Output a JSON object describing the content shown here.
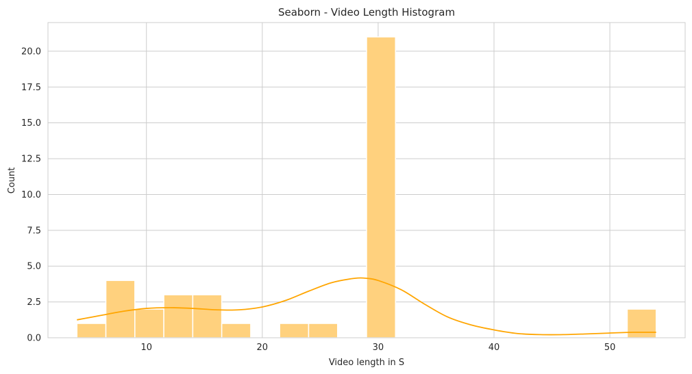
{
  "chart_data": {
    "type": "bar",
    "title": "Seaborn - Video Length Histogram",
    "xlabel": "Video length in S",
    "ylabel": "Count",
    "xlim": [
      1.5,
      56.5
    ],
    "ylim": [
      0,
      22
    ],
    "xticks": [
      10,
      20,
      30,
      40,
      50
    ],
    "yticks": [
      "0.0",
      "2.5",
      "5.0",
      "7.5",
      "10.0",
      "12.5",
      "15.0",
      "17.5",
      "20.0"
    ],
    "grid": true,
    "bins": [
      {
        "x0": 4.0,
        "x1": 6.5,
        "count": 1
      },
      {
        "x0": 6.5,
        "x1": 9.0,
        "count": 4
      },
      {
        "x0": 9.0,
        "x1": 11.5,
        "count": 2
      },
      {
        "x0": 11.5,
        "x1": 14.0,
        "count": 3
      },
      {
        "x0": 14.0,
        "x1": 16.5,
        "count": 3
      },
      {
        "x0": 16.5,
        "x1": 19.0,
        "count": 1
      },
      {
        "x0": 21.5,
        "x1": 24.0,
        "count": 1
      },
      {
        "x0": 24.0,
        "x1": 26.5,
        "count": 1
      },
      {
        "x0": 29.0,
        "x1": 31.5,
        "count": 21
      },
      {
        "x0": 51.5,
        "x1": 54.0,
        "count": 2
      }
    ],
    "kde": {
      "x": [
        4,
        6,
        8,
        10,
        12,
        14,
        16,
        18,
        20,
        22,
        24,
        26,
        28,
        29,
        30,
        32,
        34,
        36,
        38,
        40,
        42,
        44,
        46,
        48,
        50,
        52,
        54
      ],
      "y": [
        1.25,
        1.55,
        1.85,
        2.05,
        2.1,
        2.05,
        1.95,
        1.95,
        2.15,
        2.6,
        3.25,
        3.85,
        4.15,
        4.15,
        4.0,
        3.35,
        2.35,
        1.45,
        0.9,
        0.55,
        0.3,
        0.22,
        0.22,
        0.27,
        0.33,
        0.38,
        0.38
      ]
    },
    "colors": {
      "bar_fill": "#ffd17e",
      "bar_edge": "#ffffff",
      "kde_line": "#ffa500",
      "grid": "#cccccc",
      "spine": "#cccccc",
      "text": "#262626"
    }
  }
}
